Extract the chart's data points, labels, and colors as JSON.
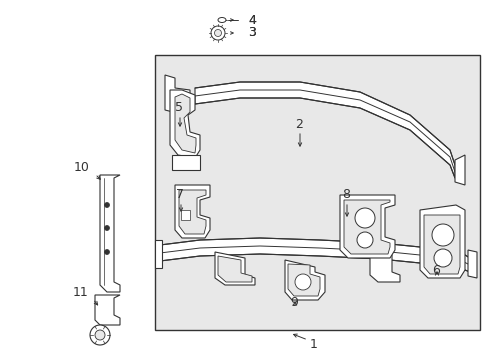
{
  "background_color": "#ffffff",
  "box_bg": "#e8e8e8",
  "line_color": "#333333",
  "fontsize": 9,
  "fig_w": 4.89,
  "fig_h": 3.6,
  "dpi": 100
}
